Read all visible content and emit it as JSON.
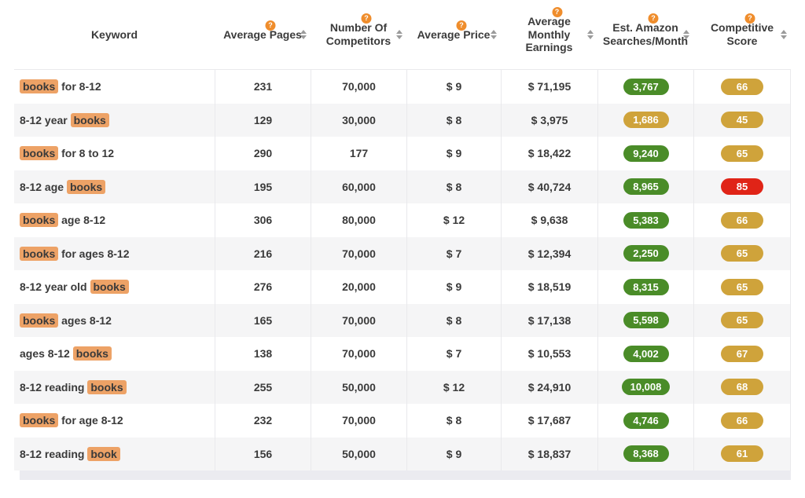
{
  "colors": {
    "green": "#4a8c28",
    "gold": "#cfa33b",
    "red": "#e02417",
    "highlight": "#eda266",
    "badge": "#ef8d2c"
  },
  "help_glyph": "?",
  "table": {
    "columns": [
      {
        "label": "Keyword",
        "sortable": false,
        "help": false
      },
      {
        "label": "Average Pages",
        "sortable": true,
        "help": true
      },
      {
        "label": "Number Of Competitors",
        "sortable": true,
        "help": true
      },
      {
        "label": "Average Price",
        "sortable": true,
        "help": true
      },
      {
        "label": "Average Monthly Earnings",
        "sortable": true,
        "help": true
      },
      {
        "label": "Est. Amazon Searches/Month",
        "sortable": true,
        "help": true
      },
      {
        "label": "Competitive Score",
        "sortable": true,
        "help": true
      }
    ],
    "rows": [
      {
        "keyword": [
          {
            "text": "books",
            "hl": true
          },
          {
            "text": " for 8-12",
            "hl": false
          }
        ],
        "avg_pages": "231",
        "competitors": "70,000",
        "avg_price": "$ 9",
        "monthly_earnings": "$ 71,195",
        "searches": "3,767",
        "searches_color": "green",
        "score": "66",
        "score_color": "gold"
      },
      {
        "keyword": [
          {
            "text": "8-12 year ",
            "hl": false
          },
          {
            "text": "books",
            "hl": true
          }
        ],
        "avg_pages": "129",
        "competitors": "30,000",
        "avg_price": "$ 8",
        "monthly_earnings": "$ 3,975",
        "searches": "1,686",
        "searches_color": "gold",
        "score": "45",
        "score_color": "gold"
      },
      {
        "keyword": [
          {
            "text": "books",
            "hl": true
          },
          {
            "text": " for 8 to 12",
            "hl": false
          }
        ],
        "avg_pages": "290",
        "competitors": "177",
        "avg_price": "$ 9",
        "monthly_earnings": "$ 18,422",
        "searches": "9,240",
        "searches_color": "green",
        "score": "65",
        "score_color": "gold"
      },
      {
        "keyword": [
          {
            "text": "8-12 age ",
            "hl": false
          },
          {
            "text": "books",
            "hl": true
          }
        ],
        "avg_pages": "195",
        "competitors": "60,000",
        "avg_price": "$ 8",
        "monthly_earnings": "$ 40,724",
        "searches": "8,965",
        "searches_color": "green",
        "score": "85",
        "score_color": "red"
      },
      {
        "keyword": [
          {
            "text": "books",
            "hl": true
          },
          {
            "text": " age 8-12",
            "hl": false
          }
        ],
        "avg_pages": "306",
        "competitors": "80,000",
        "avg_price": "$ 12",
        "monthly_earnings": "$ 9,638",
        "searches": "5,383",
        "searches_color": "green",
        "score": "66",
        "score_color": "gold"
      },
      {
        "keyword": [
          {
            "text": "books",
            "hl": true
          },
          {
            "text": " for ages 8-12",
            "hl": false
          }
        ],
        "avg_pages": "216",
        "competitors": "70,000",
        "avg_price": "$ 7",
        "monthly_earnings": "$ 12,394",
        "searches": "2,250",
        "searches_color": "green",
        "score": "65",
        "score_color": "gold"
      },
      {
        "keyword": [
          {
            "text": "8-12 year old ",
            "hl": false
          },
          {
            "text": "books",
            "hl": true
          }
        ],
        "avg_pages": "276",
        "competitors": "20,000",
        "avg_price": "$ 9",
        "monthly_earnings": "$ 18,519",
        "searches": "8,315",
        "searches_color": "green",
        "score": "65",
        "score_color": "gold"
      },
      {
        "keyword": [
          {
            "text": "books",
            "hl": true
          },
          {
            "text": " ages 8-12",
            "hl": false
          }
        ],
        "avg_pages": "165",
        "competitors": "70,000",
        "avg_price": "$ 8",
        "monthly_earnings": "$ 17,138",
        "searches": "5,598",
        "searches_color": "green",
        "score": "65",
        "score_color": "gold"
      },
      {
        "keyword": [
          {
            "text": "ages 8-12 ",
            "hl": false
          },
          {
            "text": "books",
            "hl": true
          }
        ],
        "avg_pages": "138",
        "competitors": "70,000",
        "avg_price": "$ 7",
        "monthly_earnings": "$ 10,553",
        "searches": "4,002",
        "searches_color": "green",
        "score": "67",
        "score_color": "gold"
      },
      {
        "keyword": [
          {
            "text": "8-12 reading ",
            "hl": false
          },
          {
            "text": "books",
            "hl": true
          }
        ],
        "avg_pages": "255",
        "competitors": "50,000",
        "avg_price": "$ 12",
        "monthly_earnings": "$ 24,910",
        "searches": "10,008",
        "searches_color": "green",
        "score": "68",
        "score_color": "gold"
      },
      {
        "keyword": [
          {
            "text": "books",
            "hl": true
          },
          {
            "text": " for age 8-12",
            "hl": false
          }
        ],
        "avg_pages": "232",
        "competitors": "70,000",
        "avg_price": "$ 8",
        "monthly_earnings": "$ 17,687",
        "searches": "4,746",
        "searches_color": "green",
        "score": "66",
        "score_color": "gold"
      },
      {
        "keyword": [
          {
            "text": "8-12 reading ",
            "hl": false
          },
          {
            "text": "book",
            "hl": true
          }
        ],
        "avg_pages": "156",
        "competitors": "50,000",
        "avg_price": "$ 9",
        "monthly_earnings": "$ 18,837",
        "searches": "8,368",
        "searches_color": "green",
        "score": "61",
        "score_color": "gold"
      }
    ]
  }
}
